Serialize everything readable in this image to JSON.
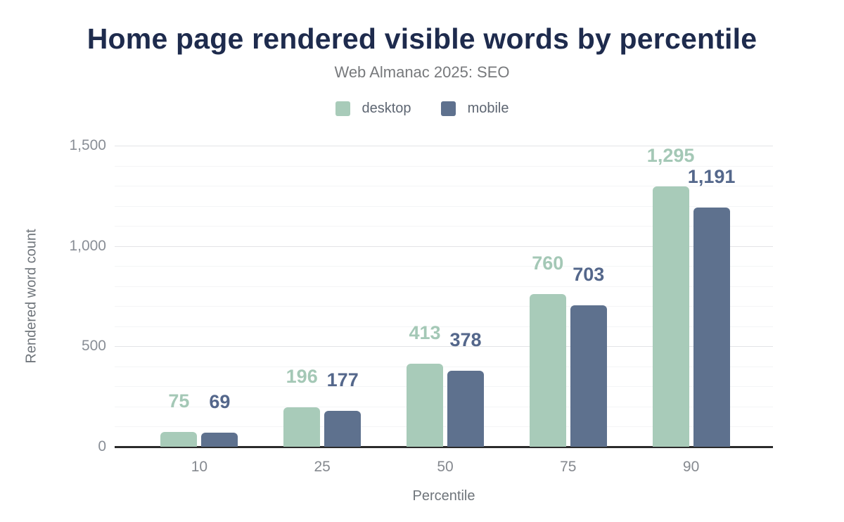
{
  "chart_data": {
    "type": "bar",
    "title": "Home page rendered visible words by percentile",
    "subtitle": "Web Almanac 2025: SEO",
    "xlabel": "Percentile",
    "ylabel": "Rendered word count",
    "categories": [
      "10",
      "25",
      "50",
      "75",
      "90"
    ],
    "series": [
      {
        "name": "desktop",
        "color": "#a8cbb9",
        "label_color": "#a4c8b6",
        "values": [
          75,
          196,
          413,
          760,
          1295
        ],
        "value_labels": [
          "75",
          "196",
          "413",
          "760",
          "1,295"
        ]
      },
      {
        "name": "mobile",
        "color": "#5e718e",
        "label_color": "#54678b",
        "values": [
          69,
          177,
          378,
          703,
          1191
        ],
        "value_labels": [
          "69",
          "177",
          "378",
          "703",
          "1,191"
        ]
      }
    ],
    "ylim": [
      0,
      1500
    ],
    "yticks": [
      0,
      500,
      1000,
      1500
    ],
    "ytick_labels": [
      "0",
      "500",
      "1,000",
      "1,500"
    ],
    "minor_grid_step": 100,
    "grid": "on",
    "legend_position": "top",
    "colors": {
      "title": "#1e2b4d",
      "subtitle": "#77797c",
      "axis_line": "#2b2b2b",
      "tick_label": "#898e96",
      "major_grid": "#e3e4e6",
      "minor_grid": "#f4f5f6"
    }
  }
}
